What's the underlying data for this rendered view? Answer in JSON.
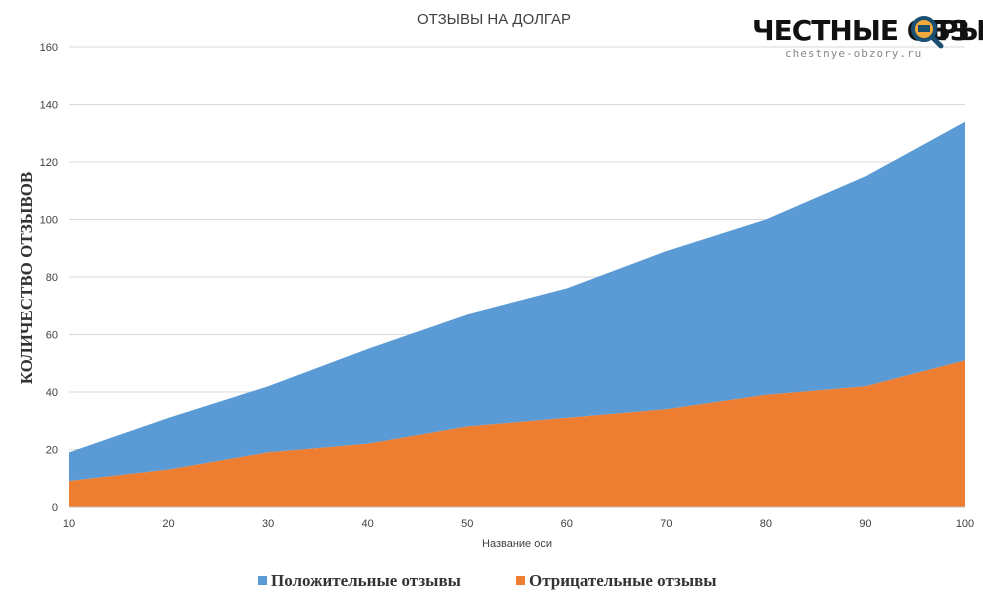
{
  "chart_data": {
    "type": "area",
    "stacked": true,
    "title": "ОТЗЫВЫ НА ДОЛГАР",
    "xlabel": "Название оси",
    "ylabel": "КОЛИЧЕСТВО ОТЗЫВОВ",
    "x": [
      10,
      20,
      30,
      40,
      50,
      60,
      70,
      80,
      90,
      100
    ],
    "xlim": [
      10,
      100
    ],
    "ylim": [
      0,
      160
    ],
    "yticks": [
      0,
      20,
      40,
      60,
      80,
      100,
      120,
      140,
      160
    ],
    "grid": true,
    "legend_position": "bottom",
    "series": [
      {
        "name": "Положительные отзывы",
        "color": "#5b9bd5",
        "values": [
          10,
          18,
          23,
          33,
          39,
          45,
          55,
          61,
          73,
          83
        ]
      },
      {
        "name": "Отрицательные отзывы",
        "color": "#ed7d31",
        "values": [
          9,
          13,
          19,
          22,
          28,
          31,
          34,
          39,
          42,
          51
        ]
      }
    ]
  },
  "watermark": {
    "text_left": "ЧЕСТНЫЕ ОБЗ",
    "text_right": "РЫ",
    "url": "chestnye-obzory.ru",
    "icon": "magnifier-icon"
  }
}
